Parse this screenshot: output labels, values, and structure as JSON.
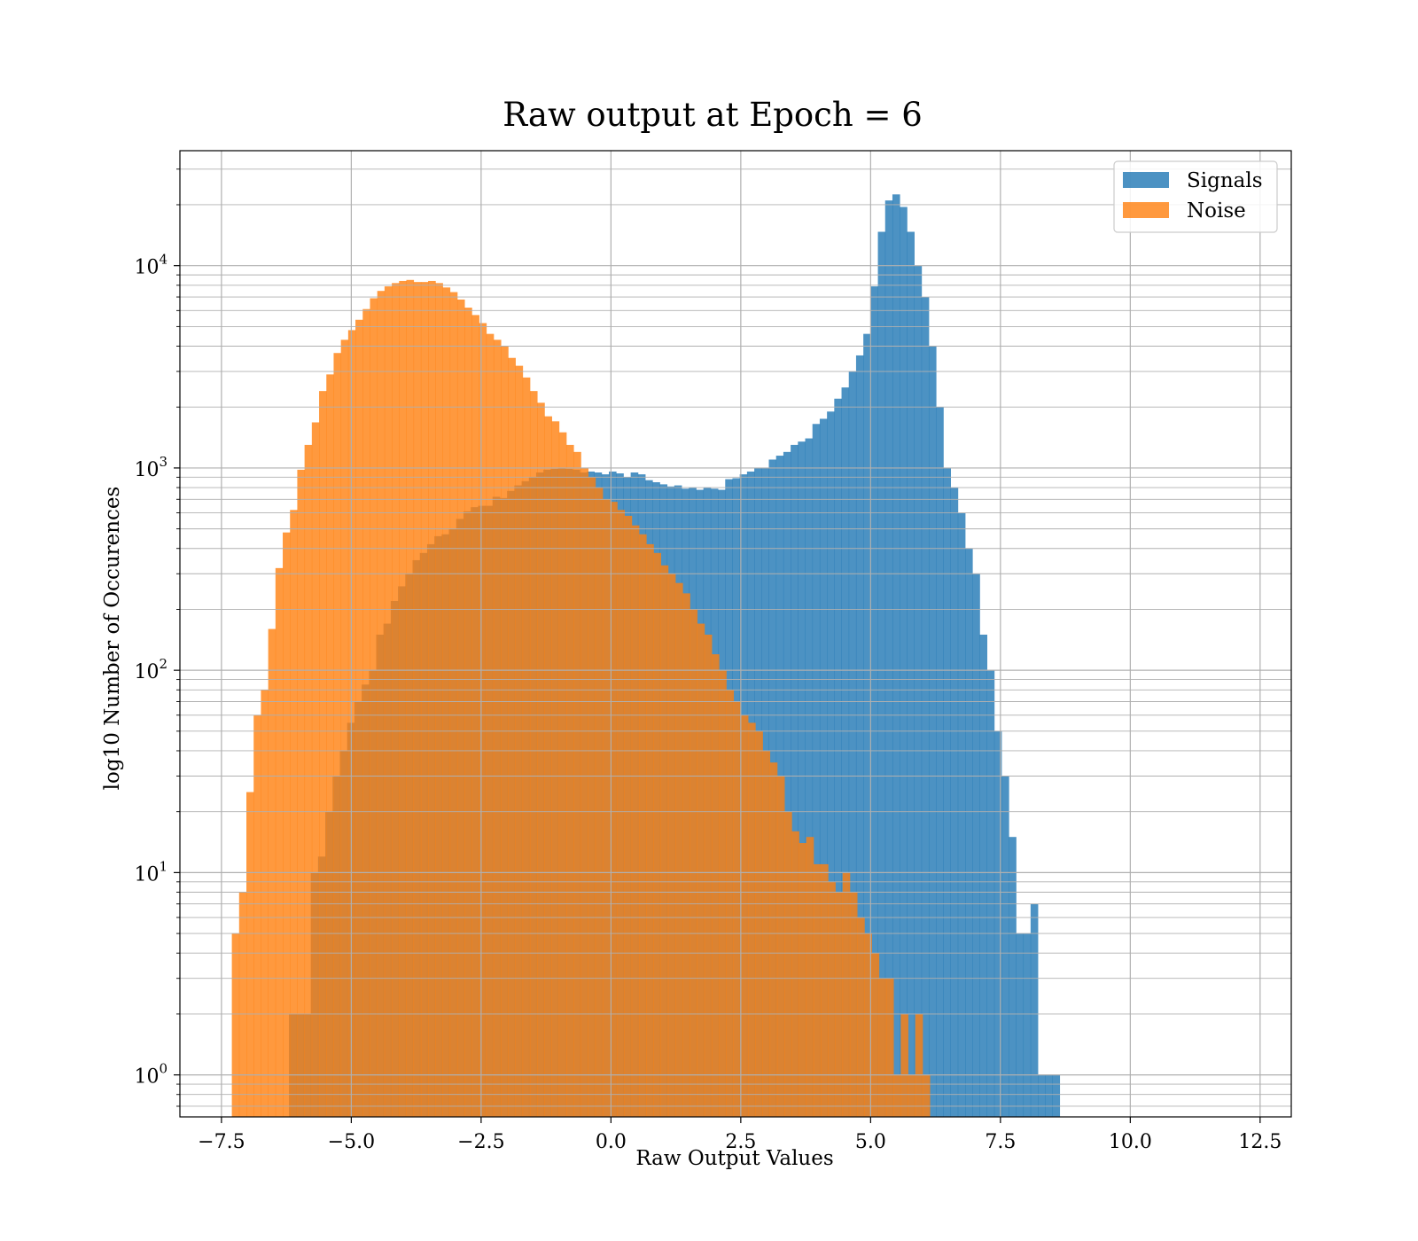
{
  "chart_data": {
    "type": "histogram",
    "title": "Raw output at Epoch = 6",
    "xlabel": "Raw Output Values",
    "ylabel": "log10 Number of Occurences",
    "xlim": [
      -8.3,
      13.1
    ],
    "ylim": [
      0.62,
      37000
    ],
    "yscale": "log",
    "grid": true,
    "legend": "top-right",
    "xticks": [
      "−7.5",
      "−5.0",
      "−2.5",
      "0.0",
      "2.5",
      "5.0",
      "7.5",
      "10.0",
      "12.5"
    ],
    "xtick_values": [
      -7.5,
      -5.0,
      -2.5,
      0.0,
      2.5,
      5.0,
      7.5,
      10.0,
      12.5
    ],
    "yticks": [
      {
        "value": 1,
        "base": "10",
        "exp": "0"
      },
      {
        "value": 10,
        "base": "10",
        "exp": "1"
      },
      {
        "value": 100,
        "base": "10",
        "exp": "2"
      },
      {
        "value": 1000,
        "base": "10",
        "exp": "3"
      },
      {
        "value": 10000,
        "base": "10",
        "exp": "4"
      }
    ],
    "series": [
      {
        "name": "Signals",
        "color": "#1f77b4",
        "opacity": 0.8,
        "bins_start": -6.2,
        "bin_width": 0.14,
        "counts": [
          2,
          2,
          2,
          10,
          12,
          20,
          30,
          40,
          55,
          70,
          85,
          100,
          150,
          170,
          220,
          260,
          300,
          350,
          380,
          420,
          460,
          470,
          500,
          560,
          610,
          640,
          650,
          650,
          720,
          710,
          770,
          820,
          860,
          900,
          950,
          980,
          990,
          1000,
          990,
          980,
          950,
          960,
          950,
          930,
          960,
          940,
          900,
          950,
          930,
          870,
          850,
          830,
          810,
          820,
          790,
          800,
          780,
          800,
          790,
          780,
          880,
          890,
          930,
          960,
          1000,
          1000,
          1100,
          1150,
          1200,
          1300,
          1350,
          1400,
          1650,
          1750,
          1900,
          2200,
          2500,
          3000,
          3600,
          4600,
          7900,
          14700,
          21000,
          22500,
          19500,
          14700,
          10000,
          7000,
          4000,
          2000,
          1000,
          800,
          600,
          400,
          300,
          150,
          100,
          50,
          30,
          15,
          5,
          5,
          7,
          1,
          1,
          1
        ]
      },
      {
        "name": "Noise",
        "color": "#ff7f0e",
        "opacity": 0.8,
        "bins_start": -7.3,
        "bin_width": 0.14,
        "counts": [
          5,
          8,
          25,
          60,
          80,
          160,
          320,
          480,
          620,
          980,
          1300,
          1680,
          2400,
          2900,
          3700,
          4300,
          4800,
          5400,
          6100,
          6900,
          7500,
          7900,
          8200,
          8400,
          8500,
          8300,
          8300,
          8400,
          8200,
          7800,
          7400,
          6800,
          6200,
          5700,
          5200,
          4600,
          4300,
          4000,
          3500,
          3200,
          2800,
          2400,
          2100,
          1800,
          1700,
          1500,
          1300,
          1200,
          1000,
          900,
          800,
          700,
          680,
          620,
          580,
          520,
          470,
          420,
          380,
          330,
          300,
          270,
          240,
          200,
          170,
          150,
          120,
          100,
          80,
          70,
          60,
          55,
          50,
          40,
          35,
          30,
          20,
          16,
          14,
          15,
          11,
          11,
          9,
          8,
          10,
          8,
          6,
          5,
          4,
          3,
          3,
          1,
          2,
          1,
          2,
          1
        ]
      }
    ]
  }
}
